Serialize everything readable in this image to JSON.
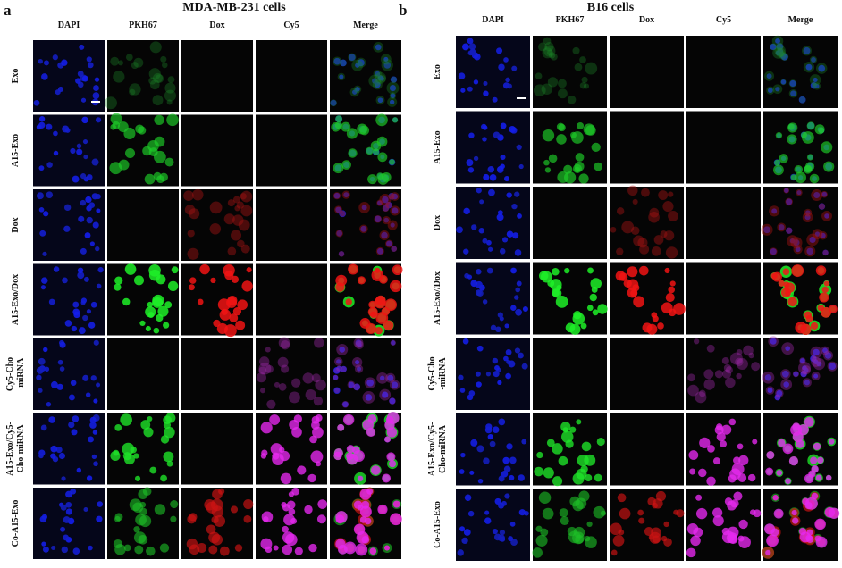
{
  "panels": [
    {
      "letter": "a",
      "title": "MDA-MB-231 cells",
      "columns": [
        "DAPI",
        "PKH67",
        "Dox",
        "Cy5",
        "Merge"
      ],
      "rows": [
        [
          "Exo"
        ],
        [
          "A15-Exo"
        ],
        [
          "Dox"
        ],
        [
          "A15-Exo/Dox"
        ],
        [
          "Cy5-Cho",
          "-miRNA"
        ],
        [
          "A15-Exo/Cy5-",
          "Cho-miRNA"
        ],
        [
          "Co-A15-Exo"
        ]
      ]
    },
    {
      "letter": "b",
      "title": "B16 cells",
      "columns": [
        "DAPI",
        "PKH67",
        "Dox",
        "Cy5",
        "Merge"
      ],
      "rows": [
        [
          "Exo"
        ],
        [
          "A15-Exo"
        ],
        [
          "Dox"
        ],
        [
          "A15-Exo//Dox"
        ],
        [
          "Cy5-Cho",
          "-miRNA"
        ],
        [
          "A15-Exo/Cy5-",
          "Cho-miRNA"
        ],
        [
          "Co-A15-Exo"
        ]
      ]
    }
  ]
}
